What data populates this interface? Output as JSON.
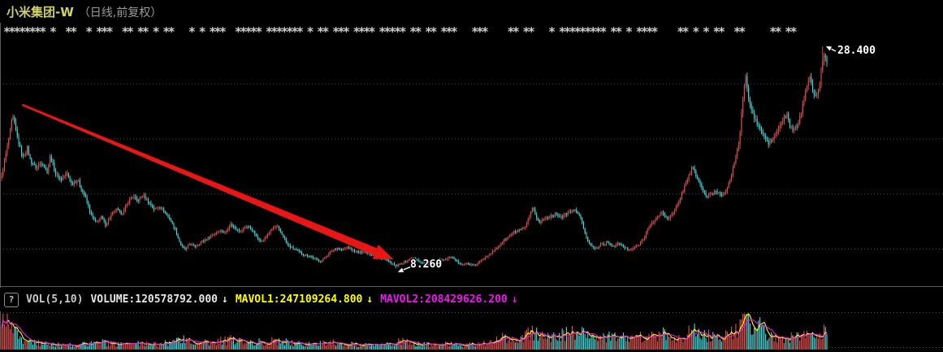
{
  "header": {
    "title": "小米集团-W",
    "subtitle": "（日线,前复权）"
  },
  "event_markers": {
    "pattern": "******** *  **  * ***  ** ** * **   * * ***  ***** ******* * ** *** **** ***** ** ** ***   ***    ** **   * ********* ** * ****    ** * * **  **     ** **"
  },
  "indicator_bar": {
    "help": "?",
    "name": "VOL(5,10)",
    "fields": [
      {
        "text": "VOLUME:120578792.000",
        "color": "#e6e6e6",
        "arrow": "↓"
      },
      {
        "text": "MAVOL1:247109264.800",
        "color": "#ffff00",
        "arrow": "↓"
      },
      {
        "text": "MAVOL2:208429626.200",
        "color": "#ef16ef",
        "arrow": "↓"
      }
    ]
  },
  "chart_data": {
    "type": "candlestick",
    "title": "小米集团-W",
    "period": "日线",
    "adjustment": "前复权",
    "price_axis": {
      "gridline_prices": [
        25,
        20,
        15,
        10
      ],
      "visible_low": 8.26,
      "visible_high": 28.4
    },
    "annotations": {
      "low": {
        "text": "8.260",
        "price": 8.26,
        "t": 0.478
      },
      "high": {
        "text": "28.400",
        "price": 28.4,
        "t": 0.995
      },
      "trend_arrow": {
        "color": "#e91616",
        "from_t": 0.025,
        "from_price": 23.1,
        "to_t": 0.453,
        "to_price": 9.75
      }
    },
    "colors": {
      "up": "#e25252",
      "down": "#45dcdc",
      "grid": "#4a4a4a",
      "frame": "#5a5a5a",
      "mavol1": "#ffff00",
      "mavol2": "#ef16ef",
      "label": "#ffffff"
    },
    "close_path": [
      [
        0.0,
        16.6
      ],
      [
        0.006,
        19.0
      ],
      [
        0.01,
        20.5
      ],
      [
        0.013,
        22.1
      ],
      [
        0.016,
        21.2
      ],
      [
        0.02,
        19.8
      ],
      [
        0.026,
        18.3
      ],
      [
        0.031,
        19.2
      ],
      [
        0.035,
        18.0
      ],
      [
        0.042,
        17.4
      ],
      [
        0.049,
        17.9
      ],
      [
        0.055,
        17.0
      ],
      [
        0.059,
        18.5
      ],
      [
        0.065,
        16.9
      ],
      [
        0.072,
        16.3
      ],
      [
        0.079,
        16.9
      ],
      [
        0.085,
        15.9
      ],
      [
        0.092,
        16.3
      ],
      [
        0.096,
        15.6
      ],
      [
        0.102,
        14.6
      ],
      [
        0.108,
        13.2
      ],
      [
        0.114,
        12.4
      ],
      [
        0.121,
        12.9
      ],
      [
        0.126,
        12.2
      ],
      [
        0.133,
        13.1
      ],
      [
        0.139,
        13.6
      ],
      [
        0.146,
        13.2
      ],
      [
        0.153,
        14.2
      ],
      [
        0.158,
        14.8
      ],
      [
        0.165,
        14.4
      ],
      [
        0.171,
        14.9
      ],
      [
        0.178,
        14.3
      ],
      [
        0.185,
        13.6
      ],
      [
        0.192,
        13.9
      ],
      [
        0.199,
        13.2
      ],
      [
        0.205,
        12.6
      ],
      [
        0.211,
        11.6
      ],
      [
        0.217,
        10.4
      ],
      [
        0.222,
        9.9
      ],
      [
        0.228,
        10.5
      ],
      [
        0.234,
        10.2
      ],
      [
        0.241,
        10.6
      ],
      [
        0.248,
        10.9
      ],
      [
        0.256,
        11.3
      ],
      [
        0.264,
        11.7
      ],
      [
        0.271,
        11.5
      ],
      [
        0.277,
        12.3
      ],
      [
        0.283,
        11.9
      ],
      [
        0.29,
        11.6
      ],
      [
        0.296,
        12.1
      ],
      [
        0.303,
        11.8
      ],
      [
        0.31,
        11.0
      ],
      [
        0.316,
        10.7
      ],
      [
        0.323,
        11.4
      ],
      [
        0.329,
        11.9
      ],
      [
        0.334,
        12.0
      ],
      [
        0.341,
        11.2
      ],
      [
        0.346,
        10.4
      ],
      [
        0.352,
        10.1
      ],
      [
        0.359,
        9.8
      ],
      [
        0.366,
        9.5
      ],
      [
        0.373,
        9.4
      ],
      [
        0.38,
        9.1
      ],
      [
        0.387,
        8.9
      ],
      [
        0.394,
        9.4
      ],
      [
        0.401,
        9.9
      ],
      [
        0.407,
        10.1
      ],
      [
        0.412,
        9.9
      ],
      [
        0.419,
        10.2
      ],
      [
        0.425,
        9.9
      ],
      [
        0.432,
        9.7
      ],
      [
        0.439,
        9.8
      ],
      [
        0.446,
        9.6
      ],
      [
        0.453,
        9.4
      ],
      [
        0.46,
        9.2
      ],
      [
        0.466,
        9.0
      ],
      [
        0.472,
        8.7
      ],
      [
        0.478,
        8.45
      ],
      [
        0.49,
        8.9
      ],
      [
        0.497,
        9.2
      ],
      [
        0.504,
        9.0
      ],
      [
        0.51,
        8.7
      ],
      [
        0.517,
        8.6
      ],
      [
        0.524,
        8.9
      ],
      [
        0.53,
        9.1
      ],
      [
        0.537,
        9.0
      ],
      [
        0.544,
        9.3
      ],
      [
        0.551,
        8.9
      ],
      [
        0.558,
        8.6
      ],
      [
        0.565,
        8.7
      ],
      [
        0.572,
        8.5
      ],
      [
        0.579,
        8.8
      ],
      [
        0.586,
        9.3
      ],
      [
        0.592,
        9.6
      ],
      [
        0.599,
        10.0
      ],
      [
        0.606,
        10.6
      ],
      [
        0.613,
        11.0
      ],
      [
        0.62,
        11.5
      ],
      [
        0.627,
        11.7
      ],
      [
        0.634,
        11.9
      ],
      [
        0.64,
        13.0
      ],
      [
        0.644,
        13.8
      ],
      [
        0.648,
        12.9
      ],
      [
        0.652,
        12.4
      ],
      [
        0.658,
        12.8
      ],
      [
        0.665,
        13.0
      ],
      [
        0.672,
        13.2
      ],
      [
        0.679,
        12.9
      ],
      [
        0.686,
        13.3
      ],
      [
        0.693,
        13.5
      ],
      [
        0.699,
        13.3
      ],
      [
        0.704,
        12.2
      ],
      [
        0.709,
        10.9
      ],
      [
        0.715,
        10.3
      ],
      [
        0.72,
        10.0
      ],
      [
        0.726,
        10.4
      ],
      [
        0.733,
        10.6
      ],
      [
        0.74,
        10.3
      ],
      [
        0.747,
        10.5
      ],
      [
        0.754,
        10.2
      ],
      [
        0.76,
        9.9
      ],
      [
        0.766,
        10.1
      ],
      [
        0.772,
        10.4
      ],
      [
        0.778,
        11.0
      ],
      [
        0.783,
        11.8
      ],
      [
        0.789,
        12.4
      ],
      [
        0.795,
        13.0
      ],
      [
        0.801,
        13.3
      ],
      [
        0.807,
        12.8
      ],
      [
        0.813,
        13.1
      ],
      [
        0.819,
        14.0
      ],
      [
        0.825,
        15.2
      ],
      [
        0.831,
        16.4
      ],
      [
        0.837,
        17.4
      ],
      [
        0.842,
        16.6
      ],
      [
        0.848,
        15.6
      ],
      [
        0.854,
        14.8
      ],
      [
        0.86,
        15.0
      ],
      [
        0.866,
        15.3
      ],
      [
        0.872,
        14.9
      ],
      [
        0.878,
        15.4
      ],
      [
        0.884,
        16.5
      ],
      [
        0.889,
        18.3
      ],
      [
        0.894,
        19.8
      ],
      [
        0.898,
        23.5
      ],
      [
        0.901,
        25.8
      ],
      [
        0.905,
        23.9
      ],
      [
        0.908,
        22.8
      ],
      [
        0.912,
        21.9
      ],
      [
        0.917,
        21.2
      ],
      [
        0.923,
        20.4
      ],
      [
        0.929,
        19.6
      ],
      [
        0.934,
        19.9
      ],
      [
        0.94,
        20.7
      ],
      [
        0.946,
        21.6
      ],
      [
        0.951,
        22.3
      ],
      [
        0.956,
        21.0
      ],
      [
        0.961,
        20.8
      ],
      [
        0.966,
        21.6
      ],
      [
        0.97,
        22.7
      ],
      [
        0.975,
        24.7
      ],
      [
        0.979,
        25.9
      ],
      [
        0.983,
        24.3
      ],
      [
        0.987,
        23.6
      ],
      [
        0.991,
        24.8
      ],
      [
        0.995,
        27.2
      ],
      [
        0.998,
        27.6
      ],
      [
        1.0,
        27.1
      ]
    ],
    "volume_path": [
      [
        0.0,
        0.92
      ],
      [
        0.008,
        0.7
      ],
      [
        0.015,
        0.45
      ],
      [
        0.025,
        0.3
      ],
      [
        0.05,
        0.16
      ],
      [
        0.08,
        0.12
      ],
      [
        0.1,
        0.14
      ],
      [
        0.112,
        0.22
      ],
      [
        0.13,
        0.16
      ],
      [
        0.15,
        0.13
      ],
      [
        0.17,
        0.16
      ],
      [
        0.19,
        0.14
      ],
      [
        0.205,
        0.2
      ],
      [
        0.217,
        0.3
      ],
      [
        0.23,
        0.22
      ],
      [
        0.25,
        0.18
      ],
      [
        0.27,
        0.24
      ],
      [
        0.285,
        0.28
      ],
      [
        0.3,
        0.22
      ],
      [
        0.32,
        0.2
      ],
      [
        0.334,
        0.24
      ],
      [
        0.35,
        0.18
      ],
      [
        0.37,
        0.14
      ],
      [
        0.39,
        0.16
      ],
      [
        0.4,
        0.2
      ],
      [
        0.42,
        0.15
      ],
      [
        0.44,
        0.12
      ],
      [
        0.46,
        0.14
      ],
      [
        0.478,
        0.2
      ],
      [
        0.49,
        0.22
      ],
      [
        0.5,
        0.16
      ],
      [
        0.52,
        0.13
      ],
      [
        0.54,
        0.15
      ],
      [
        0.56,
        0.13
      ],
      [
        0.58,
        0.14
      ],
      [
        0.59,
        0.2
      ],
      [
        0.6,
        0.26
      ],
      [
        0.61,
        0.32
      ],
      [
        0.62,
        0.3
      ],
      [
        0.634,
        0.34
      ],
      [
        0.644,
        0.48
      ],
      [
        0.652,
        0.38
      ],
      [
        0.66,
        0.32
      ],
      [
        0.67,
        0.36
      ],
      [
        0.686,
        0.42
      ],
      [
        0.7,
        0.46
      ],
      [
        0.705,
        0.4
      ],
      [
        0.71,
        0.34
      ],
      [
        0.72,
        0.3
      ],
      [
        0.73,
        0.34
      ],
      [
        0.75,
        0.3
      ],
      [
        0.77,
        0.32
      ],
      [
        0.79,
        0.36
      ],
      [
        0.8,
        0.42
      ],
      [
        0.81,
        0.38
      ],
      [
        0.82,
        0.35
      ],
      [
        0.83,
        0.44
      ],
      [
        0.84,
        0.48
      ],
      [
        0.85,
        0.4
      ],
      [
        0.86,
        0.36
      ],
      [
        0.87,
        0.34
      ],
      [
        0.88,
        0.38
      ],
      [
        0.889,
        0.52
      ],
      [
        0.898,
        0.8
      ],
      [
        0.901,
        0.92
      ],
      [
        0.905,
        0.78
      ],
      [
        0.91,
        0.62
      ],
      [
        0.916,
        0.5
      ],
      [
        0.921,
        0.85
      ],
      [
        0.925,
        0.55
      ],
      [
        0.93,
        0.4
      ],
      [
        0.94,
        0.3
      ],
      [
        0.95,
        0.28
      ],
      [
        0.955,
        0.35
      ],
      [
        0.96,
        0.3
      ],
      [
        0.97,
        0.36
      ],
      [
        0.975,
        0.46
      ],
      [
        0.98,
        0.38
      ],
      [
        0.985,
        0.35
      ],
      [
        0.99,
        0.42
      ],
      [
        0.995,
        0.5
      ],
      [
        1.0,
        0.44
      ]
    ],
    "volume_panel": {
      "ma_periods": [
        5,
        10
      ]
    }
  }
}
